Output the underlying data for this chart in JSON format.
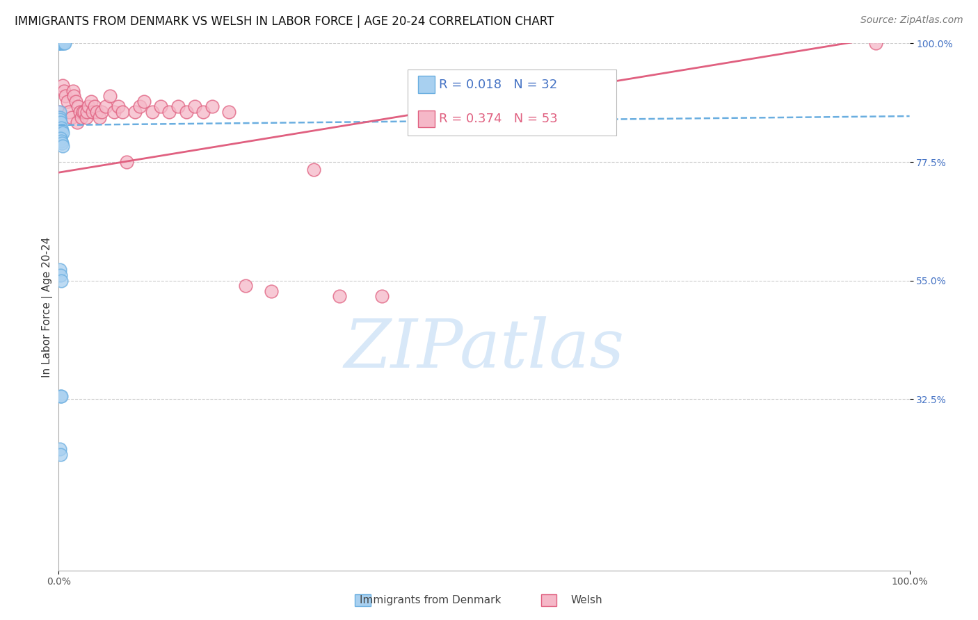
{
  "title": "IMMIGRANTS FROM DENMARK VS WELSH IN LABOR FORCE | AGE 20-24 CORRELATION CHART",
  "source": "Source: ZipAtlas.com",
  "ylabel": "In Labor Force | Age 20-24",
  "xlim": [
    0.0,
    1.0
  ],
  "ylim": [
    0.0,
    1.0
  ],
  "ytick_labels": [
    "100.0%",
    "77.5%",
    "55.0%",
    "32.5%"
  ],
  "ytick_positions": [
    1.0,
    0.775,
    0.55,
    0.325
  ],
  "color_denmark": "#A8D0F0",
  "color_denmark_edge": "#6AAEE0",
  "color_welsh": "#F5B8C8",
  "color_welsh_edge": "#E06080",
  "color_danish_trend": "#6AAEE0",
  "color_welsh_trend": "#E06080",
  "watermark_color": "#D8E8F8",
  "denmark_x": [
    0.0,
    0.0,
    0.0,
    0.0,
    0.0,
    0.0,
    0.0,
    0.0,
    0.002,
    0.003,
    0.004,
    0.005,
    0.006,
    0.007,
    0.001,
    0.001,
    0.001,
    0.002,
    0.003,
    0.004,
    0.005,
    0.002,
    0.003,
    0.004,
    0.005,
    0.001,
    0.002,
    0.003,
    0.002,
    0.003,
    0.001,
    0.002
  ],
  "denmark_y": [
    1.0,
    1.0,
    1.0,
    1.0,
    1.0,
    1.0,
    1.0,
    1.0,
    1.0,
    1.0,
    1.0,
    1.0,
    1.0,
    1.0,
    0.87,
    0.86,
    0.855,
    0.85,
    0.84,
    0.835,
    0.83,
    0.82,
    0.815,
    0.81,
    0.805,
    0.57,
    0.56,
    0.55,
    0.33,
    0.33,
    0.23,
    0.22
  ],
  "welsh_x": [
    0.0,
    0.0,
    0.0,
    0.0,
    0.005,
    0.006,
    0.008,
    0.01,
    0.012,
    0.015,
    0.017,
    0.018,
    0.02,
    0.022,
    0.023,
    0.025,
    0.027,
    0.028,
    0.03,
    0.032,
    0.033,
    0.035,
    0.038,
    0.04,
    0.042,
    0.045,
    0.048,
    0.05,
    0.055,
    0.06,
    0.065,
    0.07,
    0.075,
    0.08,
    0.09,
    0.095,
    0.1,
    0.11,
    0.12,
    0.13,
    0.14,
    0.15,
    0.16,
    0.17,
    0.18,
    0.2,
    0.22,
    0.25,
    0.3,
    0.33,
    0.38,
    0.45,
    0.96
  ],
  "welsh_y": [
    0.87,
    0.86,
    0.85,
    0.84,
    0.92,
    0.91,
    0.9,
    0.89,
    0.87,
    0.86,
    0.91,
    0.9,
    0.89,
    0.85,
    0.88,
    0.87,
    0.86,
    0.87,
    0.87,
    0.86,
    0.87,
    0.88,
    0.89,
    0.87,
    0.88,
    0.87,
    0.86,
    0.87,
    0.88,
    0.9,
    0.87,
    0.88,
    0.87,
    0.775,
    0.87,
    0.88,
    0.89,
    0.87,
    0.88,
    0.87,
    0.88,
    0.87,
    0.88,
    0.87,
    0.88,
    0.87,
    0.54,
    0.53,
    0.76,
    0.52,
    0.52,
    0.87,
    1.0
  ],
  "dk_trend_x": [
    0.0,
    1.0
  ],
  "dk_trend_y": [
    0.845,
    0.862
  ],
  "wl_trend_x": [
    0.0,
    1.0
  ],
  "wl_trend_y": [
    0.755,
    1.02
  ],
  "R_denmark": "0.018",
  "N_denmark": "32",
  "R_welsh": "0.374",
  "N_welsh": "53",
  "title_fontsize": 12,
  "source_fontsize": 10,
  "tick_fontsize": 10,
  "legend_fontsize": 13,
  "ylabel_fontsize": 11
}
